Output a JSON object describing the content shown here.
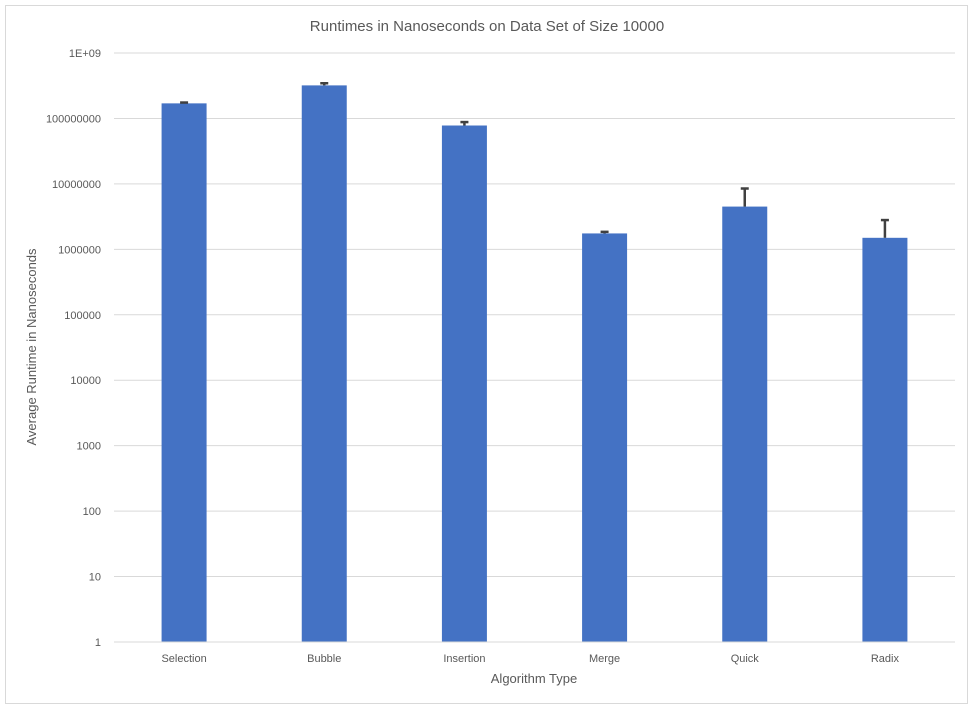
{
  "chart_data": {
    "type": "bar",
    "title": "Runtimes in Nanoseconds on Data Set of Size 10000",
    "xlabel": "Algorithm Type",
    "ylabel": "Average Runtime in Nanoseconds",
    "yscale": "log",
    "ylim": [
      1,
      1000000000
    ],
    "ytick_labels": [
      "1",
      "10",
      "100",
      "1000",
      "10000",
      "100000",
      "1000000",
      "10000000",
      "100000000",
      "1E+09"
    ],
    "ytick_values": [
      1,
      10,
      100,
      1000,
      10000,
      100000,
      1000000,
      10000000,
      100000000,
      1000000000
    ],
    "grid": true,
    "legend": "none",
    "categories": [
      "Selection",
      "Bubble",
      "Insertion",
      "Merge",
      "Quick",
      "Radix"
    ],
    "values": [
      170000000,
      320000000,
      78000000,
      1750000,
      4500000,
      1500000
    ],
    "error_upper": [
      175000000,
      345000000,
      88000000,
      1850000,
      8500000,
      2800000
    ],
    "bar_color": "#4472c4",
    "error_color": "#404040",
    "grid_color": "#d9d9d9",
    "text_color": "#595959"
  }
}
